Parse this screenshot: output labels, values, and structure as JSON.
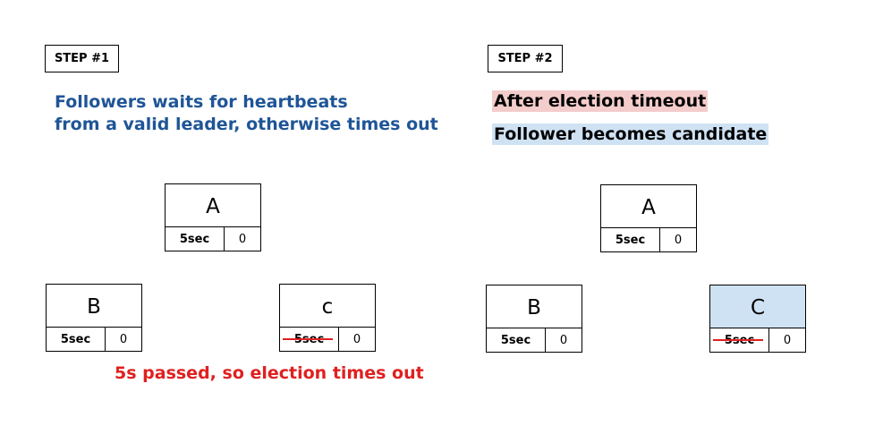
{
  "step1": {
    "label": "STEP #1",
    "description_line1": "Followers waits for heartbeats",
    "description_line2": "from a valid leader, otherwise times out",
    "note": "5s passed, so election times out",
    "nodes": [
      {
        "name": "A",
        "timeout": "5sec",
        "term": "0",
        "timeout_struck": false
      },
      {
        "name": "B",
        "timeout": "5sec",
        "term": "0",
        "timeout_struck": false
      },
      {
        "name": "c",
        "timeout": "5sec",
        "term": "0",
        "timeout_struck": true
      }
    ]
  },
  "step2": {
    "label": "STEP #2",
    "highlight1": "After election timeout",
    "highlight2": "Follower  becomes  candidate",
    "nodes": [
      {
        "name": "A",
        "timeout": "5sec",
        "term": "0",
        "timeout_struck": false
      },
      {
        "name": "B",
        "timeout": "5sec",
        "term": "0",
        "timeout_struck": false
      },
      {
        "name": "C",
        "timeout": "5sec",
        "term": "0",
        "timeout_struck": true,
        "candidate": true
      }
    ]
  },
  "colors": {
    "step1_text": "#1f5597",
    "note_text": "#e02020",
    "highlight_pink": "#f4cccc",
    "highlight_blue": "#cfe2f3",
    "strike": "#e02020"
  }
}
